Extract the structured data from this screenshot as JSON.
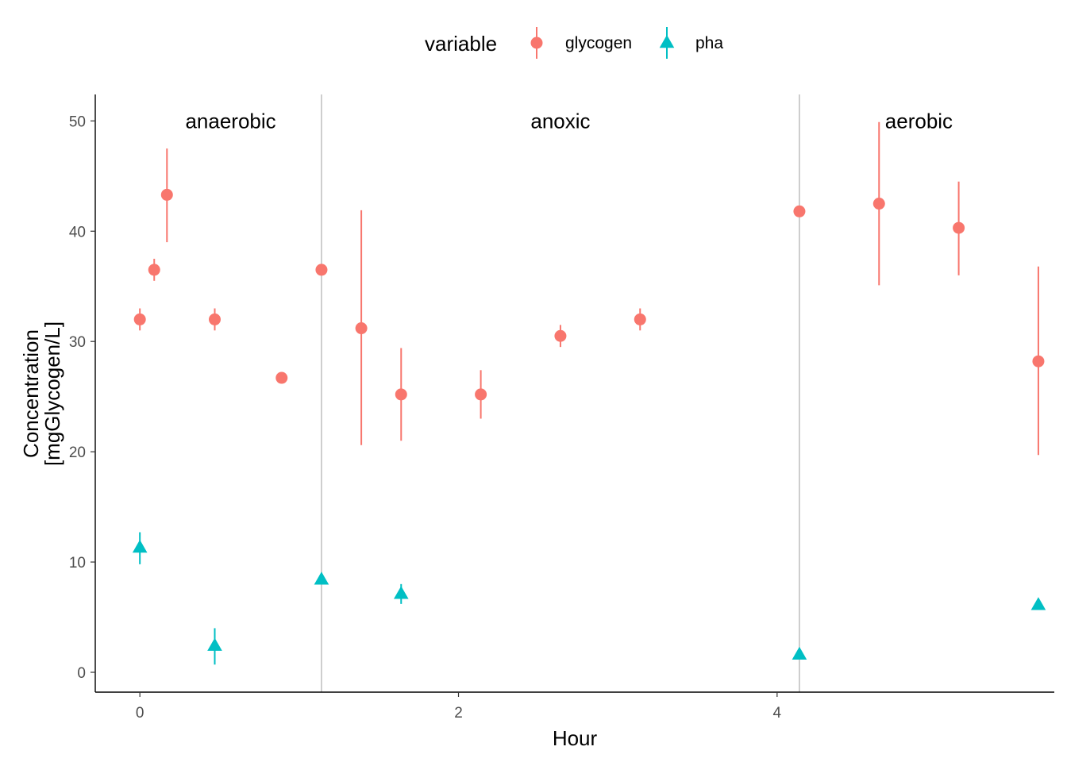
{
  "chart_data": {
    "type": "scatter",
    "xlabel": "Hour",
    "ylabel": "Concentration\n[mgGlycogen/L]",
    "ylabel_lines": [
      "Concentration",
      "[mgGlycogen/L]"
    ],
    "xlim": [
      -0.28,
      5.74
    ],
    "ylim": [
      -1.8,
      52.4
    ],
    "x_ticks": [
      0,
      2,
      4
    ],
    "y_ticks": [
      0,
      10,
      20,
      30,
      40,
      50
    ],
    "grid": false,
    "legend": {
      "title": "variable",
      "position": "top",
      "entries": [
        "glycogen",
        "pha"
      ]
    },
    "phase_lines": [
      1.14,
      4.14
    ],
    "annotations": [
      {
        "text": "anaerobic",
        "x": 0.57,
        "y": 50
      },
      {
        "text": "anoxic",
        "x": 2.64,
        "y": 50
      },
      {
        "text": "aerobic",
        "x": 4.89,
        "y": 50
      }
    ],
    "series": [
      {
        "name": "glycogen",
        "color": "#F8766D",
        "shape": "circle",
        "points": [
          {
            "x": 0.0,
            "y": 32.0,
            "ymin": 31.0,
            "ymax": 33.0
          },
          {
            "x": 0.09,
            "y": 36.5,
            "ymin": 35.5,
            "ymax": 37.5
          },
          {
            "x": 0.17,
            "y": 43.3,
            "ymin": 39.0,
            "ymax": 47.5
          },
          {
            "x": 0.47,
            "y": 32.0,
            "ymin": 31.0,
            "ymax": 33.0
          },
          {
            "x": 0.89,
            "y": 26.7,
            "ymin": 26.7,
            "ymax": 26.7
          },
          {
            "x": 1.14,
            "y": 36.5,
            "ymin": 36.5,
            "ymax": 36.5
          },
          {
            "x": 1.39,
            "y": 31.2,
            "ymin": 20.6,
            "ymax": 41.9
          },
          {
            "x": 1.64,
            "y": 25.2,
            "ymin": 21.0,
            "ymax": 29.4
          },
          {
            "x": 2.14,
            "y": 25.2,
            "ymin": 23.0,
            "ymax": 27.4
          },
          {
            "x": 2.64,
            "y": 30.5,
            "ymin": 29.5,
            "ymax": 31.5
          },
          {
            "x": 3.14,
            "y": 32.0,
            "ymin": 31.0,
            "ymax": 33.0
          },
          {
            "x": 4.14,
            "y": 41.8,
            "ymin": 41.8,
            "ymax": 41.8
          },
          {
            "x": 4.64,
            "y": 42.5,
            "ymin": 35.1,
            "ymax": 49.9
          },
          {
            "x": 5.14,
            "y": 40.3,
            "ymin": 36.0,
            "ymax": 44.5
          },
          {
            "x": 5.64,
            "y": 28.2,
            "ymin": 19.7,
            "ymax": 36.8
          }
        ]
      },
      {
        "name": "pha",
        "color": "#00BFC4",
        "shape": "triangle",
        "points": [
          {
            "x": 0.0,
            "y": 11.3,
            "ymin": 9.8,
            "ymax": 12.7
          },
          {
            "x": 0.47,
            "y": 2.4,
            "ymin": 0.7,
            "ymax": 4.0
          },
          {
            "x": 1.14,
            "y": 8.4,
            "ymin": 8.4,
            "ymax": 8.4
          },
          {
            "x": 1.64,
            "y": 7.1,
            "ymin": 6.2,
            "ymax": 8.0
          },
          {
            "x": 4.14,
            "y": 1.6,
            "ymin": 1.6,
            "ymax": 1.6
          },
          {
            "x": 5.64,
            "y": 6.1,
            "ymin": 6.1,
            "ymax": 6.1
          }
        ]
      }
    ]
  }
}
